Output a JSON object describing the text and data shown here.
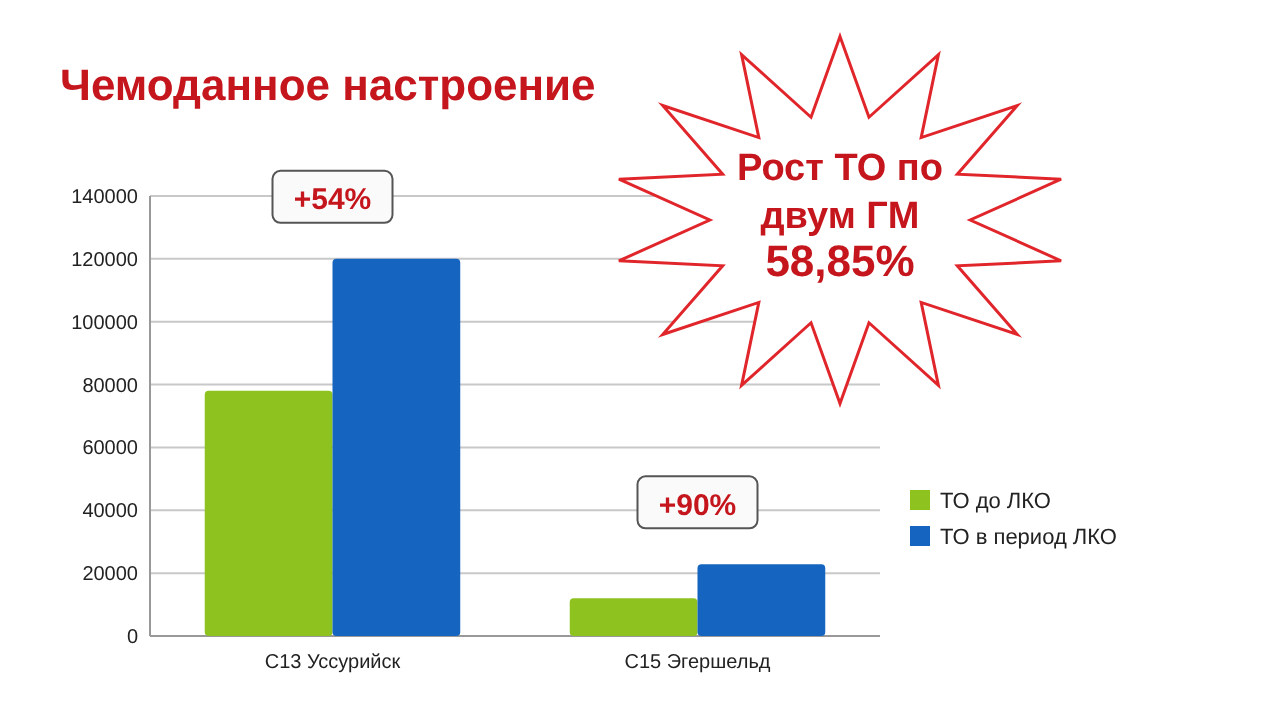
{
  "chart_data": {
    "type": "bar",
    "title": "Чемоданное настроение",
    "categories": [
      "С13 Уссурийск",
      "С15 Эгершельд"
    ],
    "series": [
      {
        "name": "ТО до ЛКО",
        "color": "#8dc21f",
        "values": [
          78000,
          12000
        ]
      },
      {
        "name": "ТО в период ЛКО",
        "color": "#1565c0",
        "values": [
          120000,
          22800
        ]
      }
    ],
    "ylim": [
      0,
      140000
    ],
    "yticks": [
      0,
      20000,
      40000,
      60000,
      80000,
      100000,
      120000,
      140000
    ],
    "grid": "y",
    "legend": "right",
    "annotations": [
      "+54%",
      "+90%",
      "Рост ТО по\nдвум ГМ\n58,85%"
    ]
  }
}
